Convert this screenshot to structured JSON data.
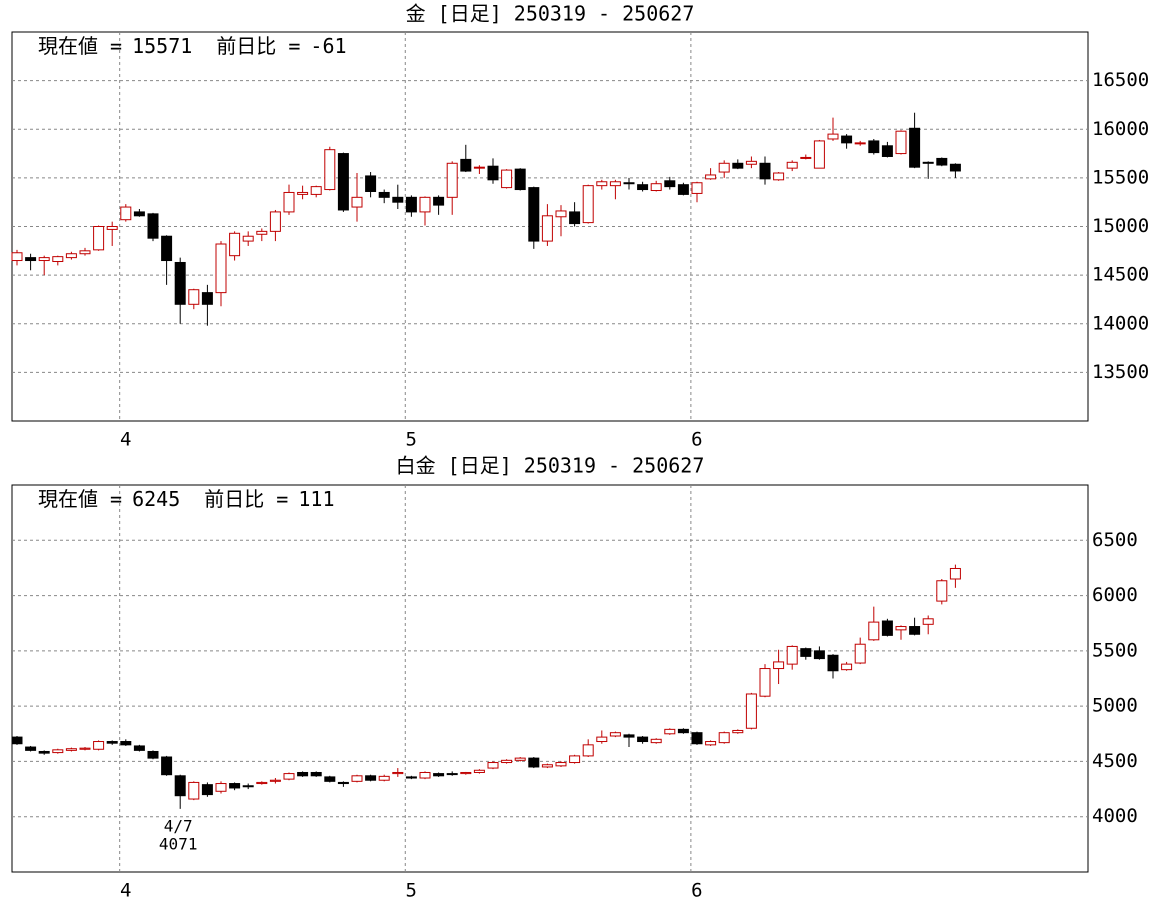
{
  "chart_data": [
    {
      "type": "candlestick",
      "title": "金 [日足] 250319 - 250627",
      "current_label": "現在値 =",
      "current": 15571,
      "change_label": "前日比 =",
      "change": -61,
      "categories": [
        null,
        null,
        null,
        null,
        null,
        null,
        null,
        null,
        "4",
        null,
        null,
        null,
        null,
        null,
        null,
        null,
        null,
        null,
        null,
        null,
        null,
        null,
        null,
        null,
        null,
        null,
        null,
        null,
        null,
        "5",
        null,
        null,
        null,
        null,
        null,
        null,
        null,
        null,
        null,
        null,
        null,
        null,
        null,
        null,
        null,
        null,
        null,
        null,
        null,
        null,
        "6",
        null,
        null,
        null,
        null,
        null,
        null,
        null,
        null,
        null,
        null,
        null,
        null,
        null,
        null,
        null,
        null,
        null,
        null,
        null
      ],
      "open": [
        14650,
        14680,
        14650,
        14640,
        14680,
        14720,
        14760,
        14970,
        15070,
        15150,
        15130,
        14900,
        14630,
        14200,
        14320,
        14320,
        14700,
        14850,
        14920,
        14950,
        15150,
        15330,
        15330,
        15380,
        15750,
        15200,
        15520,
        15350,
        15300,
        15300,
        15150,
        15300,
        15300,
        15690,
        15600,
        15620,
        15400,
        15590,
        15400,
        14850,
        15100,
        15150,
        15040,
        15420,
        15420,
        15450,
        15430,
        15370,
        15470,
        15430,
        15340,
        15490,
        15560,
        15650,
        15640,
        15650,
        15480,
        15600,
        15700,
        15600,
        15900,
        15930,
        15850,
        15880,
        15830,
        15750,
        16010,
        15660,
        15700,
        15640
      ],
      "high": [
        14760,
        14720,
        14700,
        14700,
        14740,
        14780,
        15010,
        15050,
        15230,
        15180,
        15140,
        14910,
        14680,
        14360,
        14400,
        14850,
        14950,
        14950,
        14980,
        15170,
        15430,
        15420,
        15420,
        15820,
        15760,
        15550,
        15560,
        15380,
        15430,
        15320,
        15310,
        15320,
        15670,
        15840,
        15630,
        15700,
        15590,
        15600,
        15410,
        15230,
        15220,
        15250,
        15430,
        15480,
        15480,
        15500,
        15460,
        15470,
        15510,
        15450,
        15460,
        15600,
        15680,
        15690,
        15720,
        15720,
        15560,
        15680,
        15740,
        15890,
        16120,
        15950,
        15880,
        15900,
        15870,
        15990,
        16170,
        15670,
        15710,
        15650
      ],
      "low": [
        14600,
        14550,
        14500,
        14600,
        14660,
        14700,
        14750,
        14800,
        15050,
        15100,
        14850,
        14400,
        14000,
        14150,
        13980,
        14180,
        14650,
        14800,
        14850,
        14850,
        15120,
        15280,
        15300,
        15370,
        15150,
        15050,
        15300,
        15240,
        15180,
        15100,
        15010,
        15120,
        15120,
        15560,
        15540,
        15440,
        15390,
        15370,
        14770,
        14800,
        14900,
        15000,
        15030,
        15380,
        15280,
        15380,
        15360,
        15360,
        15380,
        15320,
        15250,
        15480,
        15500,
        15590,
        15600,
        15430,
        15470,
        15570,
        15690,
        15600,
        15880,
        15800,
        15830,
        15740,
        15710,
        15740,
        15600,
        15490,
        15620,
        15500
      ],
      "close": [
        14730,
        14650,
        14680,
        14690,
        14720,
        14750,
        15000,
        15000,
        15200,
        15110,
        14880,
        14650,
        14200,
        14350,
        14200,
        14820,
        14930,
        14900,
        14950,
        15150,
        15350,
        15350,
        15410,
        15790,
        15170,
        15300,
        15360,
        15300,
        15250,
        15150,
        15300,
        15220,
        15650,
        15570,
        15610,
        15480,
        15580,
        15380,
        14850,
        15110,
        15160,
        15030,
        15420,
        15460,
        15460,
        15440,
        15380,
        15440,
        15410,
        15330,
        15450,
        15530,
        15650,
        15600,
        15670,
        15490,
        15550,
        15660,
        15710,
        15880,
        15950,
        15860,
        15860,
        15760,
        15720,
        15980,
        15610,
        15650,
        15632,
        15571
      ],
      "up_color": "#c00000",
      "down_color": "#000000",
      "ylim": [
        13000,
        17000
      ],
      "yticks": [
        13500,
        14000,
        14500,
        15000,
        15500,
        16000,
        16500
      ],
      "grid": true
    },
    {
      "type": "candlestick",
      "title": "白金 [日足] 250319 - 250627",
      "current_label": "現在値 =",
      "current": 6245,
      "change_label": "前日比 =",
      "change": 111,
      "categories": [
        null,
        null,
        null,
        null,
        null,
        null,
        null,
        null,
        "4",
        null,
        null,
        null,
        null,
        null,
        null,
        null,
        null,
        null,
        null,
        null,
        null,
        null,
        null,
        null,
        null,
        null,
        null,
        null,
        null,
        "5",
        null,
        null,
        null,
        null,
        null,
        null,
        null,
        null,
        null,
        null,
        null,
        null,
        null,
        null,
        null,
        null,
        null,
        null,
        null,
        null,
        "6",
        null,
        null,
        null,
        null,
        null,
        null,
        null,
        null,
        null,
        null,
        null,
        null,
        null,
        null,
        null,
        null,
        null,
        null,
        null
      ],
      "open": [
        4720,
        4630,
        4590,
        4580,
        4600,
        4610,
        4610,
        4680,
        4680,
        4640,
        4590,
        4540,
        4370,
        4160,
        4290,
        4230,
        4300,
        4280,
        4300,
        4320,
        4340,
        4400,
        4400,
        4360,
        4310,
        4320,
        4370,
        4330,
        4390,
        4360,
        4350,
        4390,
        4390,
        4390,
        4400,
        4440,
        4490,
        4510,
        4530,
        4450,
        4460,
        4490,
        4550,
        4680,
        4730,
        4740,
        4720,
        4670,
        4750,
        4790,
        4760,
        4650,
        4670,
        4760,
        4800,
        5090,
        5340,
        5380,
        5520,
        5500,
        5460,
        5330,
        5390,
        5600,
        5770,
        5690,
        5720,
        5740,
        5950,
        6150
      ],
      "high": [
        4730,
        4640,
        4600,
        4615,
        4625,
        4630,
        4690,
        4690,
        4700,
        4650,
        4600,
        4550,
        4380,
        4320,
        4310,
        4320,
        4310,
        4300,
        4320,
        4350,
        4400,
        4410,
        4410,
        4370,
        4320,
        4380,
        4380,
        4380,
        4440,
        4370,
        4410,
        4400,
        4410,
        4405,
        4430,
        4500,
        4520,
        4540,
        4540,
        4480,
        4500,
        4560,
        4700,
        4780,
        4770,
        4750,
        4730,
        4710,
        4800,
        4800,
        4770,
        4690,
        4770,
        4790,
        5120,
        5380,
        5510,
        5550,
        5530,
        5540,
        5470,
        5400,
        5620,
        5900,
        5790,
        5730,
        5800,
        5820,
        6150,
        6280
      ],
      "low": [
        4650,
        4590,
        4560,
        4570,
        4590,
        4600,
        4600,
        4650,
        4640,
        4590,
        4520,
        4370,
        4071,
        4150,
        4180,
        4210,
        4240,
        4250,
        4290,
        4300,
        4330,
        4360,
        4360,
        4310,
        4270,
        4310,
        4320,
        4320,
        4360,
        4340,
        4340,
        4360,
        4370,
        4380,
        4390,
        4430,
        4480,
        4500,
        4440,
        4440,
        4450,
        4480,
        4540,
        4660,
        4720,
        4630,
        4660,
        4660,
        4740,
        4750,
        4650,
        4640,
        4660,
        4750,
        4790,
        5080,
        5200,
        5330,
        5420,
        5420,
        5250,
        5320,
        5380,
        5590,
        5630,
        5600,
        5640,
        5650,
        5920,
        6070
      ],
      "close": [
        4660,
        4600,
        4575,
        4605,
        4615,
        4620,
        4680,
        4665,
        4650,
        4600,
        4530,
        4380,
        4190,
        4310,
        4200,
        4300,
        4260,
        4275,
        4310,
        4330,
        4390,
        4370,
        4370,
        4320,
        4300,
        4370,
        4330,
        4365,
        4400,
        4350,
        4400,
        4370,
        4385,
        4400,
        4420,
        4490,
        4510,
        4530,
        4450,
        4470,
        4490,
        4550,
        4650,
        4720,
        4760,
        4720,
        4680,
        4700,
        4790,
        4760,
        4660,
        4680,
        4760,
        4780,
        5110,
        5340,
        5400,
        5540,
        5450,
        5430,
        5320,
        5380,
        5560,
        5760,
        5640,
        5720,
        5650,
        5790,
        6134,
        6245
      ],
      "up_color": "#c00000",
      "down_color": "#000000",
      "annotations": [
        {
          "label": "4/7",
          "value": 4071
        }
      ],
      "ylim": [
        3500,
        7000
      ],
      "yticks": [
        4000,
        4500,
        5000,
        5500,
        6000,
        6500
      ],
      "grid": true
    }
  ]
}
